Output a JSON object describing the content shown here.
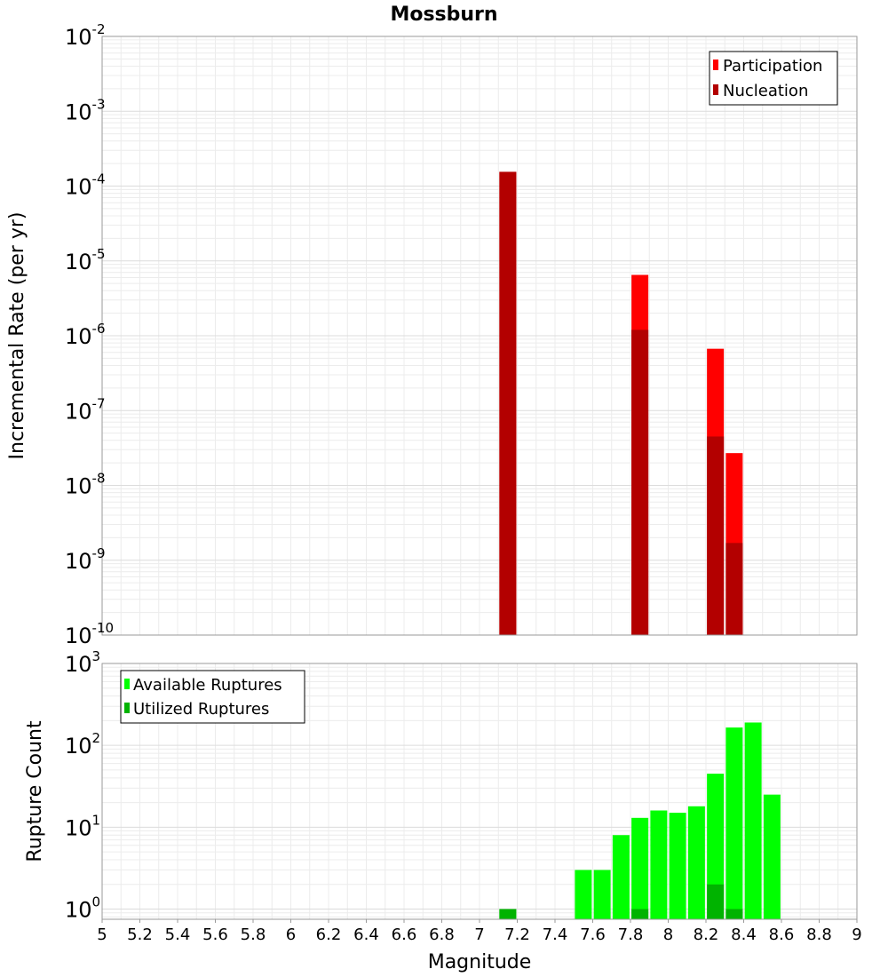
{
  "chart_data": [
    {
      "type": "bar",
      "title": "Mossburn",
      "xlabel": "Magnitude",
      "ylabel": "Incremental Rate (per yr)",
      "yscale": "log",
      "xlim": [
        5,
        9
      ],
      "ylim": [
        1e-10,
        0.01
      ],
      "x_ticks": [
        "5",
        "5.2",
        "5.4",
        "5.6",
        "5.8",
        "6",
        "6.2",
        "6.4",
        "6.6",
        "6.8",
        "7",
        "7.2",
        "7.4",
        "7.6",
        "7.8",
        "8",
        "8.2",
        "8.4",
        "8.6",
        "8.8",
        "9"
      ],
      "y_tick_exponents": [
        "-10",
        "-9",
        "-8",
        "-7",
        "-6",
        "-5",
        "-4",
        "-3",
        "-2"
      ],
      "grid": true,
      "legend_position": "top-right",
      "series": [
        {
          "name": "Participation",
          "color": "#ff0000",
          "x": [
            7.15,
            7.85,
            8.25,
            8.35
          ],
          "values": [
            0.000155,
            6.5e-06,
            6.7e-07,
            2.7e-08
          ]
        },
        {
          "name": "Nucleation",
          "color": "#b30000",
          "x": [
            7.15,
            7.85,
            8.25,
            8.35
          ],
          "values": [
            0.000155,
            1.2e-06,
            4.5e-08,
            1.7e-09
          ]
        }
      ]
    },
    {
      "type": "bar",
      "xlabel": "Magnitude",
      "ylabel": "Rupture Count",
      "yscale": "log",
      "xlim": [
        5,
        9
      ],
      "ylim": [
        0.75,
        1000
      ],
      "y_tick_exponents": [
        "0",
        "1",
        "2",
        "3"
      ],
      "grid": true,
      "legend_position": "top-left",
      "series": [
        {
          "name": "Available Ruptures",
          "color": "#00ff00",
          "x": [
            7.15,
            7.55,
            7.65,
            7.75,
            7.85,
            7.95,
            8.05,
            8.15,
            8.25,
            8.35,
            8.45,
            8.55
          ],
          "values": [
            1,
            3,
            3,
            8,
            13,
            16,
            15,
            18,
            45,
            165,
            190,
            25
          ]
        },
        {
          "name": "Utilized Ruptures",
          "color": "#00b300",
          "x": [
            7.15,
            7.85,
            8.25,
            8.35
          ],
          "values": [
            1,
            1,
            2,
            1
          ]
        }
      ]
    }
  ]
}
